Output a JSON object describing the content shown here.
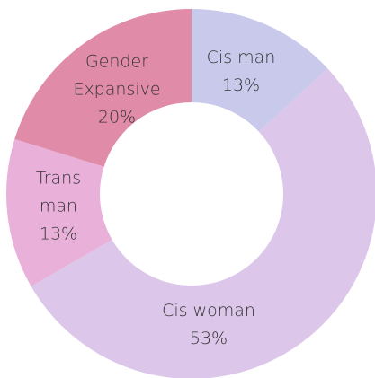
{
  "chart_data": {
    "type": "donut",
    "categories": [
      "Cis man",
      "Cis woman",
      "Trans man",
      "Gender Expansive"
    ],
    "values": [
      13,
      53,
      13,
      20
    ],
    "value_labels": [
      "13%",
      "53%",
      "13%",
      "20%"
    ],
    "colors": [
      "#c9c9ec",
      "#dcc6e9",
      "#e9b1da",
      "#e08ba7"
    ]
  }
}
